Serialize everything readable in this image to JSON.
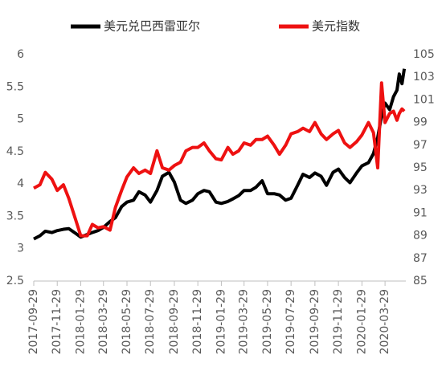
{
  "chart_data": {
    "type": "line",
    "x": [
      "2017-09-29",
      "2017-10-15",
      "2017-10-29",
      "2017-11-15",
      "2017-11-29",
      "2017-12-15",
      "2017-12-29",
      "2018-01-15",
      "2018-01-29",
      "2018-02-15",
      "2018-02-28",
      "2018-03-15",
      "2018-03-29",
      "2018-04-15",
      "2018-04-29",
      "2018-05-15",
      "2018-05-29",
      "2018-06-15",
      "2018-06-29",
      "2018-07-15",
      "2018-07-29",
      "2018-08-15",
      "2018-08-29",
      "2018-09-15",
      "2018-09-29",
      "2018-10-15",
      "2018-10-29",
      "2018-11-15",
      "2018-11-29",
      "2018-12-15",
      "2018-12-29",
      "2019-01-15",
      "2019-01-29",
      "2019-02-15",
      "2019-02-28",
      "2019-03-15",
      "2019-03-29",
      "2019-04-15",
      "2019-04-29",
      "2019-05-15",
      "2019-05-29",
      "2019-06-15",
      "2019-06-29",
      "2019-07-15",
      "2019-07-29",
      "2019-08-15",
      "2019-08-29",
      "2019-09-15",
      "2019-09-29",
      "2019-10-15",
      "2019-10-29",
      "2019-11-15",
      "2019-11-29",
      "2019-12-15",
      "2019-12-29",
      "2020-01-15",
      "2020-01-29",
      "2020-02-15",
      "2020-02-28",
      "2020-03-10",
      "2020-03-20",
      "2020-03-29",
      "2020-04-10",
      "2020-04-20",
      "2020-04-29",
      "2020-05-05",
      "2020-05-12",
      "2020-05-18"
    ],
    "series": [
      {
        "name": "美元兑巴西雷亚尔",
        "color": "#000000",
        "axis": "y",
        "values": [
          3.15,
          3.2,
          3.27,
          3.25,
          3.28,
          3.3,
          3.31,
          3.24,
          3.18,
          3.22,
          3.25,
          3.28,
          3.33,
          3.42,
          3.48,
          3.65,
          3.72,
          3.75,
          3.88,
          3.83,
          3.72,
          3.9,
          4.12,
          4.18,
          4.03,
          3.75,
          3.7,
          3.75,
          3.85,
          3.9,
          3.88,
          3.72,
          3.7,
          3.73,
          3.77,
          3.82,
          3.9,
          3.9,
          3.95,
          4.05,
          3.85,
          3.85,
          3.83,
          3.75,
          3.78,
          3.98,
          4.15,
          4.1,
          4.17,
          4.12,
          3.98,
          4.18,
          4.23,
          4.1,
          4.02,
          4.17,
          4.28,
          4.33,
          4.47,
          4.72,
          5.05,
          5.25,
          5.15,
          5.35,
          5.45,
          5.7,
          5.55,
          5.78
        ]
      },
      {
        "name": "美元指数",
        "color": "#ee1111",
        "axis": "y2",
        "values": [
          93.2,
          93.5,
          94.6,
          94.0,
          93.0,
          93.5,
          92.3,
          90.5,
          89.0,
          89.0,
          90.0,
          89.7,
          89.8,
          89.5,
          91.5,
          93.0,
          94.2,
          95.0,
          94.5,
          94.8,
          94.5,
          96.5,
          95.0,
          94.8,
          95.2,
          95.5,
          96.5,
          96.8,
          96.8,
          97.2,
          96.5,
          95.8,
          95.7,
          96.8,
          96.2,
          96.5,
          97.2,
          97.0,
          97.5,
          97.5,
          97.8,
          97.0,
          96.2,
          97.0,
          98.0,
          98.2,
          98.5,
          98.2,
          99.0,
          98.0,
          97.5,
          98.0,
          98.3,
          97.2,
          96.8,
          97.3,
          97.9,
          99.0,
          98.1,
          95.0,
          102.5,
          99.0,
          99.8,
          100.0,
          99.2,
          99.8,
          100.2,
          100.0
        ]
      }
    ],
    "xlim": [
      "2017-09-29",
      "2020-05-22"
    ],
    "xticks": [
      "2017-09-29",
      "2017-11-29",
      "2018-01-29",
      "2018-03-29",
      "2018-05-29",
      "2018-07-29",
      "2018-09-29",
      "2018-11-29",
      "2019-01-29",
      "2019-03-29",
      "2019-05-29",
      "2019-07-29",
      "2019-09-29",
      "2019-11-29",
      "2020-01-29",
      "2020-03-29"
    ],
    "ylim": [
      2.5,
      6
    ],
    "yticks": [
      2.5,
      3,
      3.5,
      4,
      4.5,
      5,
      5.5,
      6
    ],
    "y2lim": [
      85,
      105
    ],
    "y2ticks": [
      85,
      87,
      89,
      91,
      93,
      95,
      97,
      99,
      101,
      103,
      105
    ],
    "grid": false,
    "legend": "top"
  }
}
